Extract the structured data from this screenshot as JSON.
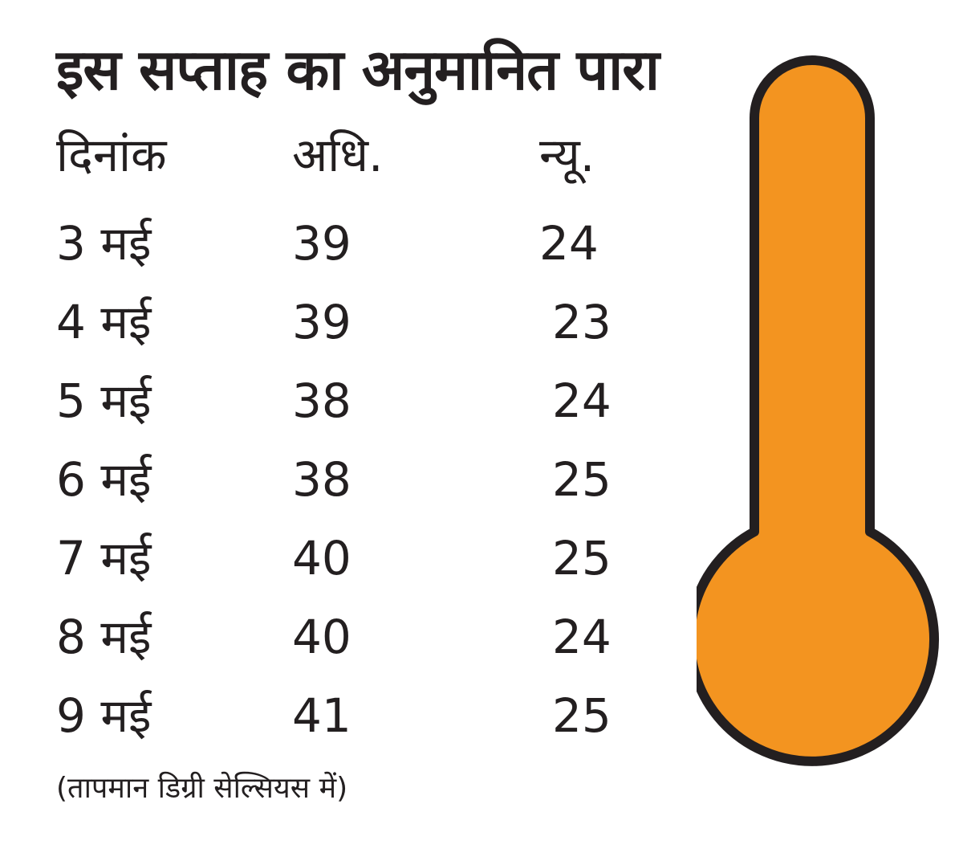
{
  "title": "इस सप्ताह का अनुमानित पारा",
  "table": {
    "headers": {
      "date": "दिनांक",
      "max": "अधि.",
      "min": "न्यू."
    },
    "rows": [
      {
        "date": "3 मई",
        "max": "39",
        "min": "24"
      },
      {
        "date": "4 मई",
        "max": "39",
        "min": "23"
      },
      {
        "date": "5 मई",
        "max": "38",
        "min": "24"
      },
      {
        "date": "6 मई",
        "max": "38",
        "min": "25"
      },
      {
        "date": "7 मई",
        "max": "40",
        "min": "25"
      },
      {
        "date": "8 मई",
        "max": "40",
        "min": "24"
      },
      {
        "date": "9 मई",
        "max": "41",
        "min": "25"
      }
    ]
  },
  "note": "(तापमान डिग्री सेल्सियस में)",
  "colors": {
    "thermometer_fill": "#F39420",
    "outline": "#231F20",
    "text": "#231F20"
  },
  "icon": "thermometer-icon"
}
